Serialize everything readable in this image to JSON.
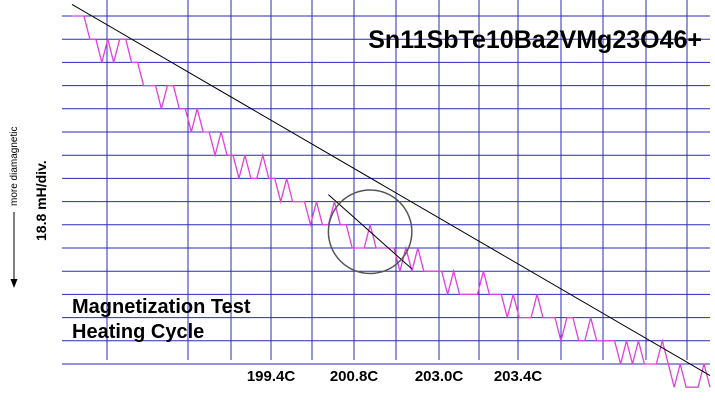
{
  "chart_data": {
    "type": "line",
    "title": "Sn11SbTe10Ba2VMg23O46+",
    "caption_lines": [
      "Magnetization Test",
      "Heating Cycle"
    ],
    "ylabel_direction": "more diamagnetic",
    "ylabel_scale": "18.8 mH/div.",
    "x_tick_labels": [
      "199.4C",
      "200.8C",
      "203.0C",
      "203.4C"
    ],
    "grid": true,
    "series": [
      {
        "values": [
          0,
          0,
          0,
          1,
          1,
          2,
          1,
          2,
          1,
          1,
          2,
          2,
          3,
          3,
          3,
          4,
          3,
          3,
          4,
          4,
          5,
          4,
          5,
          5,
          6,
          5,
          6,
          6,
          7,
          6,
          7,
          7,
          6,
          7,
          7,
          8,
          7,
          8,
          8,
          8,
          9,
          8,
          9,
          9,
          8,
          9,
          9,
          10,
          10,
          10,
          9,
          10,
          10,
          10,
          10,
          11,
          10,
          11,
          10,
          11,
          11,
          11,
          11,
          12,
          11,
          12,
          12,
          12,
          12,
          11,
          12,
          12,
          12,
          13,
          12,
          13,
          13,
          13,
          12,
          13,
          13,
          13,
          14,
          13,
          13,
          14,
          14,
          13,
          14,
          14,
          14,
          14,
          15,
          14,
          15,
          14,
          15,
          15,
          15,
          14,
          15,
          16,
          15,
          16,
          16,
          16,
          15,
          16
        ]
      }
    ],
    "trend_lines": [
      {
        "from": [
          0,
          -0.5
        ],
        "to": [
          107,
          15.5
        ]
      },
      {
        "from": [
          43,
          7.7
        ],
        "to": [
          57,
          10.9
        ]
      }
    ],
    "highlight_circle": {
      "center": [
        50,
        9.3
      ],
      "radius_x": 7
    }
  }
}
